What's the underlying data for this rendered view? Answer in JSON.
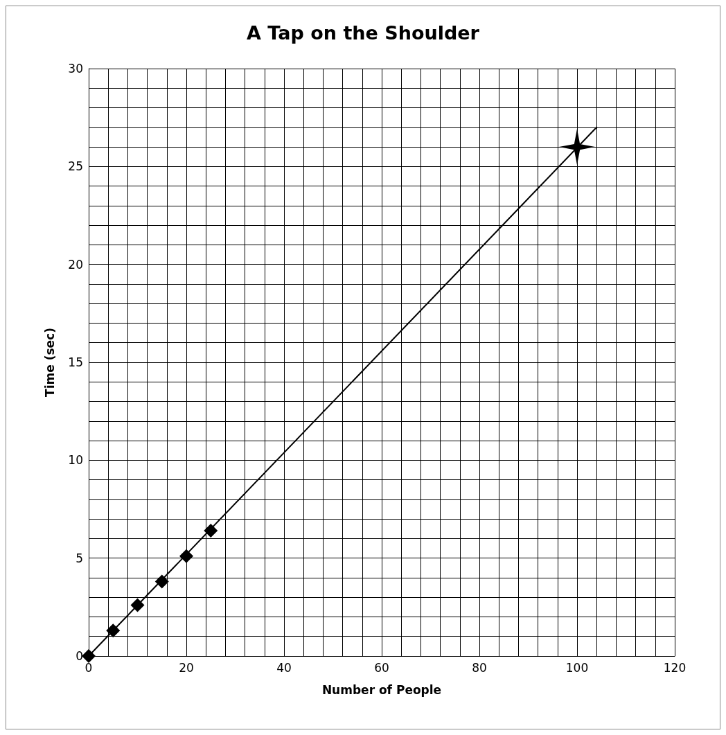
{
  "chart_data": {
    "type": "scatter",
    "title": "A Tap on the Shoulder",
    "xlabel": "Number of People",
    "ylabel": "Time (sec)",
    "series": [
      {
        "type": "line",
        "color": "#000000",
        "marker": "none",
        "x": [
          0,
          104
        ],
        "values": [
          0,
          27
        ]
      },
      {
        "color": "#000000",
        "marker": "diamond",
        "x": [
          0,
          5,
          10,
          15,
          20,
          25
        ],
        "values": [
          0,
          1.3,
          2.6,
          3.8,
          5.1,
          6.4
        ]
      },
      {
        "color": "#000000",
        "marker": "star",
        "x": [
          100
        ],
        "values": [
          26
        ]
      }
    ],
    "xlim": [
      0,
      120
    ],
    "xticks": [
      0,
      20,
      40,
      60,
      80,
      100,
      120
    ],
    "ylim": [
      0,
      30
    ],
    "yticks": [
      0,
      5,
      10,
      15,
      20,
      25,
      30
    ],
    "grid": true
  }
}
